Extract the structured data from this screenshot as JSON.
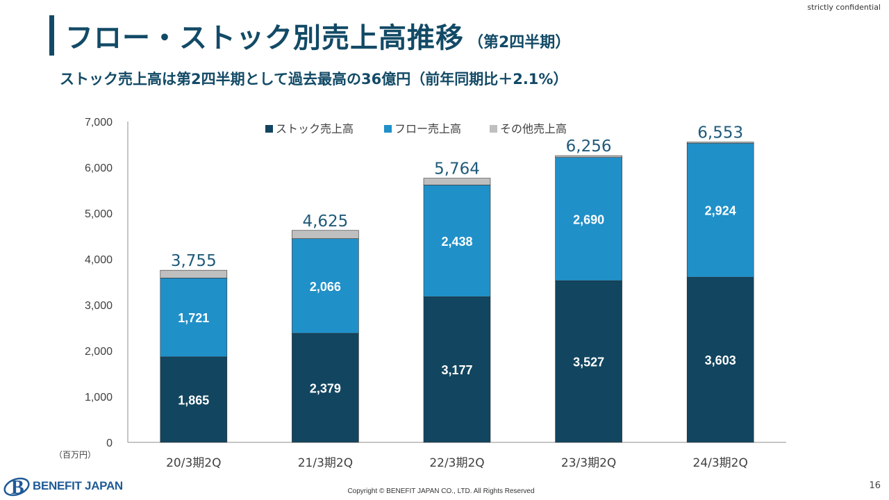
{
  "header": {
    "confidential": "strictly confidential",
    "title": "フロー・ストック別売上高推移",
    "title_sub": "（第2四半期）",
    "subtitle": "ストック売上高は第2四半期として過去最高の36億円（前年同期比＋2.1%）"
  },
  "chart_data": {
    "type": "bar",
    "stacked": true,
    "categories": [
      "20/3期2Q",
      "21/3期2Q",
      "22/3期2Q",
      "23/3期2Q",
      "24/3期2Q"
    ],
    "series": [
      {
        "name": "ストック売上高",
        "values": [
          1865,
          2379,
          3177,
          3527,
          3603
        ],
        "color": "#12455f",
        "labels": [
          "1,865",
          "2,379",
          "3,177",
          "3,527",
          "3,603"
        ]
      },
      {
        "name": "フロー売上高",
        "values": [
          1721,
          2066,
          2438,
          2690,
          2924
        ],
        "color": "#2090c8",
        "labels": [
          "1,721",
          "2,066",
          "2,438",
          "2,690",
          "2,924"
        ]
      },
      {
        "name": "その他売上高",
        "values": [
          169,
          180,
          149,
          39,
          26
        ],
        "color": "#bfbfbf"
      }
    ],
    "totals": [
      "3,755",
      "4,625",
      "5,764",
      "6,256",
      "6,553"
    ],
    "total_values": [
      3755,
      4625,
      5764,
      6256,
      6553
    ],
    "ylim": [
      0,
      7000
    ],
    "yticks": [
      "0",
      "1,000",
      "2,000",
      "3,000",
      "4,000",
      "5,000",
      "6,000",
      "7,000"
    ],
    "ytick_values": [
      0,
      1000,
      2000,
      3000,
      4000,
      5000,
      6000,
      7000
    ],
    "unit_label": "（百万円）",
    "legend_position": "top-center",
    "grid": false
  },
  "footer": {
    "logo_text": "BENEFIT JAPAN",
    "copyright": "Copyright © BENEFIT JAPAN CO., LTD. All Rights Reserved",
    "page_number": "16"
  }
}
